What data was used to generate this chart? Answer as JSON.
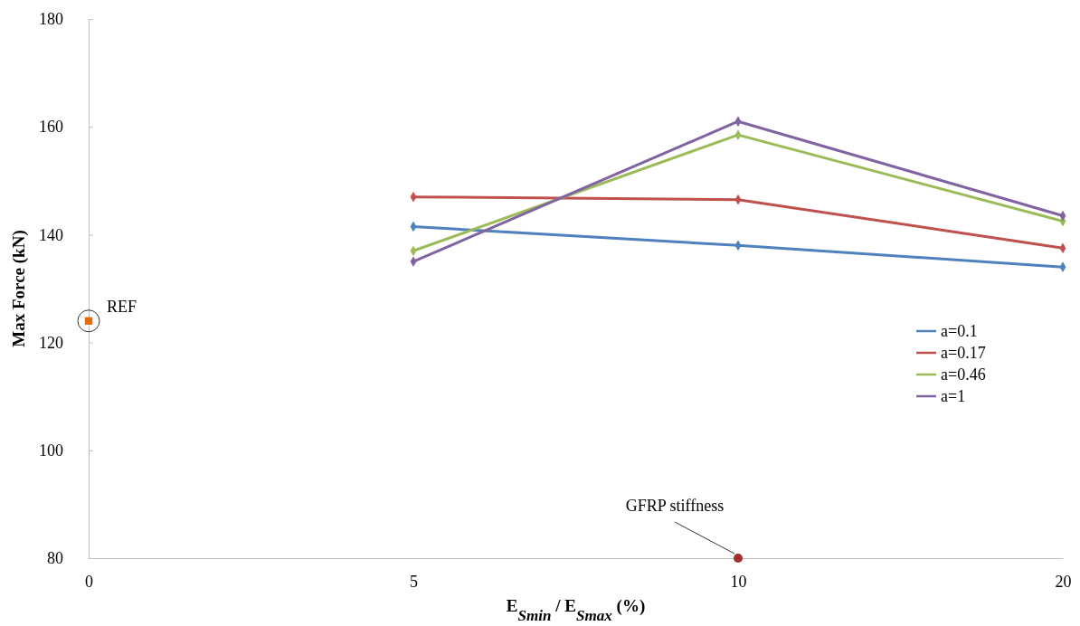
{
  "chart_data": {
    "type": "line",
    "xlabel": "E$_{Smin}$ / E$_{Smax}$ (%)",
    "ylabel": "Max Force (kN)",
    "categories": [
      "0",
      "5",
      "10",
      "20"
    ],
    "series": [
      {
        "name": "a=0.1",
        "color": "#4f81bd",
        "values": [
          null,
          141.5,
          138,
          134
        ]
      },
      {
        "name": "a=0.17",
        "color": "#c0504d",
        "values": [
          null,
          147,
          146.5,
          137.5
        ]
      },
      {
        "name": "a=0.46",
        "color": "#9bbb59",
        "values": [
          null,
          137,
          158.5,
          142.5
        ]
      },
      {
        "name": "a=1",
        "color": "#8064a2",
        "values": [
          null,
          135,
          161,
          143.5
        ]
      },
      {
        "type": "scatter",
        "marker": "square",
        "color": "#e36c09",
        "values": [
          124,
          null,
          null,
          null
        ]
      },
      {
        "type": "scatter",
        "marker": "circle",
        "color": "#a0302d",
        "values": [
          null,
          null,
          80,
          null
        ]
      }
    ],
    "ylim": [
      80,
      180
    ],
    "yticks": [
      80,
      100,
      120,
      140,
      160,
      180
    ],
    "marker": "diamond",
    "legend": "right",
    "grid": false,
    "annotations": [
      {
        "text": "REF",
        "x": "0",
        "y": 124
      },
      {
        "text": "GFRP stiffness",
        "x": "10",
        "y": 80
      }
    ]
  }
}
